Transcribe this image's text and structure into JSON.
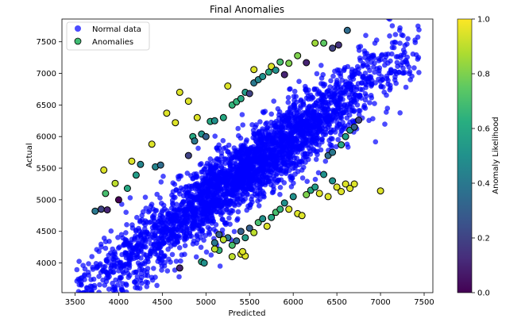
{
  "chart_data": {
    "type": "scatter",
    "title": "Final Anomalies",
    "xlabel": "Predicted",
    "ylabel": "Actual",
    "xlim": [
      3350,
      7600
    ],
    "ylim": [
      3530,
      7860
    ],
    "xticks": [
      "3500",
      "4000",
      "4500",
      "5000",
      "5500",
      "6000",
      "6500",
      "7000",
      "7500"
    ],
    "yticks": [
      "4000",
      "4500",
      "5000",
      "5500",
      "6000",
      "6500",
      "7000",
      "7500"
    ],
    "grid": false,
    "legend_position": "top-left",
    "colorbar": {
      "label": "Anomaly Likelihood",
      "range": [
        0.0,
        1.0
      ],
      "ticks": [
        "0.0",
        "0.2",
        "0.4",
        "0.6",
        "0.8",
        "1.0"
      ],
      "colormap": "viridis"
    },
    "series": [
      {
        "name": "Normal data",
        "color": "#0000ff",
        "approx_count": 3000,
        "x_range": [
          3500,
          7450
        ],
        "trend": "y ≈ x",
        "spread_sd": 300
      },
      {
        "name": "Anomalies",
        "color": "#3fbc73",
        "points": [
          [
            3730,
            4820,
            0.4
          ],
          [
            3800,
            4850,
            0.2
          ],
          [
            3870,
            4840,
            0.1
          ],
          [
            3850,
            5100,
            0.7
          ],
          [
            3830,
            5470,
            0.95
          ],
          [
            3960,
            5260,
            0.9
          ],
          [
            4000,
            5000,
            0.0
          ],
          [
            4100,
            5180,
            0.6
          ],
          [
            4150,
            5610,
            0.95
          ],
          [
            4200,
            5390,
            0.55
          ],
          [
            4250,
            5560,
            0.45
          ],
          [
            4380,
            5880,
            0.95
          ],
          [
            4420,
            5520,
            0.45
          ],
          [
            4480,
            5550,
            0.35
          ],
          [
            4550,
            6370,
            0.95
          ],
          [
            4650,
            6220,
            0.95
          ],
          [
            4700,
            6700,
            0.95
          ],
          [
            4800,
            6560,
            0.95
          ],
          [
            4800,
            5700,
            0.2
          ],
          [
            4850,
            6000,
            0.6
          ],
          [
            4870,
            5930,
            0.4
          ],
          [
            4900,
            6300,
            0.95
          ],
          [
            4950,
            6040,
            0.5
          ],
          [
            5000,
            6000,
            0.3
          ],
          [
            5050,
            6240,
            0.6
          ],
          [
            5100,
            6250,
            0.5
          ],
          [
            5200,
            6300,
            0.6
          ],
          [
            5250,
            6800,
            0.95
          ],
          [
            5300,
            6500,
            0.65
          ],
          [
            5350,
            6550,
            0.65
          ],
          [
            5400,
            6600,
            0.6
          ],
          [
            5450,
            6700,
            0.55
          ],
          [
            5500,
            6680,
            0.2
          ],
          [
            5550,
            6850,
            0.4
          ],
          [
            5550,
            7060,
            0.95
          ],
          [
            5600,
            6900,
            0.45
          ],
          [
            5650,
            6950,
            0.5
          ],
          [
            5720,
            7020,
            0.6
          ],
          [
            5750,
            7110,
            0.95
          ],
          [
            5800,
            7050,
            0.5
          ],
          [
            5850,
            7180,
            0.7
          ],
          [
            5900,
            6980,
            0.1
          ],
          [
            5950,
            7160,
            0.8
          ],
          [
            6050,
            7280,
            0.8
          ],
          [
            6150,
            7170,
            0.1
          ],
          [
            6250,
            7480,
            0.85
          ],
          [
            6350,
            7480,
            0.75
          ],
          [
            6450,
            7400,
            0.2
          ],
          [
            6520,
            7450,
            0.15
          ],
          [
            6620,
            7680,
            0.35
          ],
          [
            5450,
            4400,
            0.55
          ],
          [
            5400,
            4500,
            0.3
          ],
          [
            5350,
            4350,
            0.35
          ],
          [
            5300,
            4280,
            0.7
          ],
          [
            5250,
            4400,
            0.4
          ],
          [
            5200,
            4370,
            0.9
          ],
          [
            5150,
            4200,
            0.65
          ],
          [
            5100,
            4220,
            0.9
          ],
          [
            4950,
            4020,
            0.6
          ],
          [
            4980,
            4000,
            0.5
          ],
          [
            4700,
            3920,
            0.1
          ],
          [
            5500,
            4550,
            0.3
          ],
          [
            5550,
            4480,
            0.9
          ],
          [
            5600,
            4640,
            0.7
          ],
          [
            5650,
            4700,
            0.5
          ],
          [
            5700,
            4580,
            0.95
          ],
          [
            5750,
            4720,
            0.6
          ],
          [
            5800,
            4800,
            0.7
          ],
          [
            5850,
            4850,
            0.65
          ],
          [
            5900,
            4950,
            0.5
          ],
          [
            5950,
            4850,
            0.95
          ],
          [
            6000,
            5050,
            0.5
          ],
          [
            6050,
            4780,
            0.95
          ],
          [
            6100,
            4750,
            0.95
          ],
          [
            6150,
            5080,
            0.8
          ],
          [
            6200,
            5150,
            0.6
          ],
          [
            6250,
            5200,
            0.55
          ],
          [
            6300,
            5100,
            0.95
          ],
          [
            6350,
            5400,
            0.5
          ],
          [
            6400,
            5050,
            0.95
          ],
          [
            6450,
            5300,
            0.5
          ],
          [
            6500,
            5200,
            0.95
          ],
          [
            6550,
            5130,
            0.95
          ],
          [
            6600,
            5250,
            0.95
          ],
          [
            6650,
            5180,
            0.95
          ],
          [
            6700,
            5250,
            0.95
          ],
          [
            6400,
            5700,
            0.35
          ],
          [
            6450,
            5750,
            0.4
          ],
          [
            6550,
            5870,
            0.6
          ],
          [
            6600,
            6000,
            0.55
          ],
          [
            6650,
            6100,
            0.5
          ],
          [
            6700,
            6150,
            0.3
          ],
          [
            6750,
            6260,
            0.2
          ],
          [
            7000,
            5140,
            0.95
          ],
          [
            5400,
            4140,
            0.95
          ],
          [
            5450,
            4110,
            0.95
          ],
          [
            5420,
            4180,
            0.95
          ],
          [
            5300,
            4100,
            0.9
          ],
          [
            5100,
            4320,
            0.4
          ],
          [
            5150,
            4450,
            0.3
          ]
        ]
      }
    ]
  }
}
